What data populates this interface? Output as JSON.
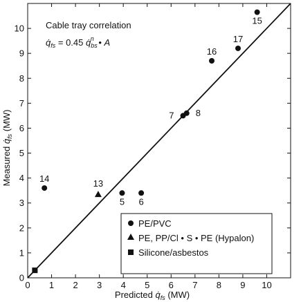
{
  "chart_data": {
    "type": "scatter",
    "xlabel": "Predicted q̇_fs (MW)",
    "ylabel": "Measured q̇_fs (MW)",
    "xlim": [
      0,
      11
    ],
    "ylim": [
      0,
      11
    ],
    "x_ticks": [
      0,
      1,
      2,
      3,
      4,
      5,
      6,
      7,
      8,
      9,
      10
    ],
    "y_ticks": [
      0,
      1,
      2,
      3,
      4,
      5,
      6,
      7,
      8,
      9,
      10
    ],
    "annotation": {
      "title": "Cable tray correlation",
      "equation": "q̇_fs = 0.45 q̇_bs^n • A"
    },
    "reference_line": {
      "x": [
        0,
        11
      ],
      "y": [
        0,
        11
      ]
    },
    "series": [
      {
        "name": "PE/PVC",
        "marker": "circle",
        "points": [
          {
            "x": 3.95,
            "y": 3.4,
            "label": "5"
          },
          {
            "x": 4.75,
            "y": 3.4,
            "label": "6"
          },
          {
            "x": 6.5,
            "y": 6.5,
            "label": "7"
          },
          {
            "x": 6.65,
            "y": 6.6,
            "label": "8"
          },
          {
            "x": 7.7,
            "y": 8.7,
            "label": "16"
          },
          {
            "x": 8.8,
            "y": 9.2,
            "label": "17"
          },
          {
            "x": 9.6,
            "y": 10.65,
            "label": "15"
          },
          {
            "x": 0.7,
            "y": 3.6,
            "label": "14"
          }
        ]
      },
      {
        "name": "PE, PP/Cl • S • PE (Hypalon)",
        "marker": "triangle",
        "points": [
          {
            "x": 2.95,
            "y": 3.35,
            "label": "13"
          }
        ]
      },
      {
        "name": "Silicone/asbestos",
        "marker": "square",
        "points": [
          {
            "x": 0.3,
            "y": 0.3,
            "label": ""
          }
        ]
      }
    ],
    "legend_position": "bottom-right",
    "grid": false
  }
}
